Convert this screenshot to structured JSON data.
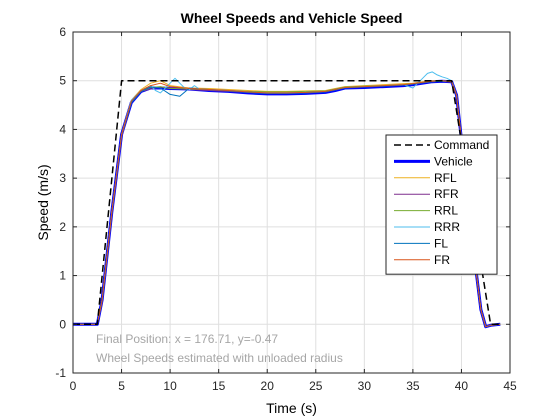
{
  "chart_data": {
    "type": "line",
    "title": "Wheel Speeds and Vehicle Speed",
    "xlabel": "Time (s)",
    "ylabel": "Speed (m/s)",
    "xlim": [
      0,
      45
    ],
    "ylim": [
      -1,
      6
    ],
    "xticks": [
      "0",
      "5",
      "10",
      "15",
      "20",
      "25",
      "30",
      "35",
      "40",
      "45"
    ],
    "yticks": [
      "-1",
      "0",
      "1",
      "2",
      "3",
      "4",
      "5",
      "6"
    ],
    "grid": true,
    "legend_position": "right",
    "annotations": [
      "Final Position:  x = 176.71, y=-0.47",
      "Wheel Speeds estimated with unloaded radius"
    ],
    "series": [
      {
        "name": "Command",
        "color": "#000000",
        "style": "dashed",
        "width": 1.5,
        "x": [
          0,
          2.5,
          5,
          39,
          43,
          44
        ],
        "y": [
          0,
          0,
          5,
          5,
          0,
          0
        ]
      },
      {
        "name": "Vehicle",
        "color": "#0000ff",
        "style": "solid",
        "width": 3,
        "x": [
          0,
          2.5,
          3,
          4,
          5,
          6,
          7,
          8,
          9,
          10,
          12,
          14,
          16,
          18,
          20,
          22,
          24,
          26,
          27,
          28,
          30,
          32,
          34,
          35,
          36,
          37,
          38,
          39,
          39.5,
          40,
          41,
          42,
          42.5,
          43,
          44
        ],
        "y": [
          0,
          0,
          0.5,
          2.3,
          3.9,
          4.55,
          4.78,
          4.85,
          4.85,
          4.84,
          4.83,
          4.8,
          4.78,
          4.75,
          4.73,
          4.73,
          4.74,
          4.76,
          4.8,
          4.85,
          4.86,
          4.88,
          4.9,
          4.92,
          4.95,
          4.98,
          4.99,
          4.98,
          4.7,
          3.8,
          1.9,
          0.3,
          -0.05,
          -0.02,
          0
        ]
      },
      {
        "name": "RFL",
        "color": "#edb120",
        "style": "solid",
        "width": 1,
        "x": [
          0,
          2.5,
          3,
          4,
          5,
          6,
          7,
          8,
          9,
          10,
          12,
          14,
          16,
          18,
          20,
          22,
          24,
          26,
          27,
          28,
          30,
          32,
          34,
          35,
          36,
          37,
          38,
          39,
          39.5,
          40,
          41,
          42,
          42.5,
          43,
          44
        ],
        "y": [
          0,
          0,
          0.5,
          2.3,
          3.9,
          4.6,
          4.82,
          4.95,
          5.0,
          4.9,
          4.85,
          4.84,
          4.82,
          4.8,
          4.78,
          4.78,
          4.79,
          4.8,
          4.84,
          4.88,
          4.9,
          4.92,
          4.94,
          4.95,
          4.98,
          5.0,
          5.0,
          4.99,
          4.7,
          3.8,
          1.9,
          0.3,
          -0.05,
          -0.02,
          0
        ]
      },
      {
        "name": "RFR",
        "color": "#7e2f8e",
        "style": "solid",
        "width": 1,
        "x": [
          0,
          2.5,
          3,
          4,
          5,
          6,
          7,
          8,
          9,
          10,
          12,
          14,
          16,
          18,
          20,
          22,
          24,
          26,
          27,
          28,
          30,
          32,
          34,
          35,
          36,
          37,
          38,
          39,
          39.5,
          40,
          41,
          42,
          42.5,
          43,
          44
        ],
        "y": [
          0,
          0,
          0.45,
          2.25,
          3.85,
          4.55,
          4.78,
          4.83,
          4.87,
          4.85,
          4.82,
          4.8,
          4.78,
          4.76,
          4.74,
          4.74,
          4.75,
          4.77,
          4.81,
          4.86,
          4.87,
          4.89,
          4.91,
          4.93,
          4.96,
          4.98,
          4.99,
          4.97,
          4.7,
          3.8,
          1.9,
          0.3,
          -0.05,
          -0.02,
          0
        ]
      },
      {
        "name": "RRL",
        "color": "#77ac30",
        "style": "solid",
        "width": 1,
        "x": [
          0,
          2.5,
          3,
          4,
          5,
          6,
          7,
          8,
          9,
          10,
          12,
          14,
          16,
          18,
          20,
          22,
          24,
          26,
          27,
          28,
          30,
          32,
          34,
          35,
          36,
          37,
          38,
          39,
          39.5,
          40,
          41,
          42,
          42.5,
          43,
          44
        ],
        "y": [
          0,
          0,
          0.5,
          2.3,
          3.9,
          4.55,
          4.78,
          4.86,
          4.88,
          4.84,
          4.83,
          4.82,
          4.8,
          4.78,
          4.77,
          4.77,
          4.78,
          4.79,
          4.83,
          4.87,
          4.89,
          4.9,
          4.92,
          4.94,
          4.97,
          4.99,
          5.0,
          4.98,
          4.7,
          3.8,
          1.9,
          0.3,
          -0.05,
          -0.02,
          0
        ]
      },
      {
        "name": "RRR",
        "color": "#4dbeee",
        "style": "solid",
        "width": 1,
        "x": [
          0,
          2.5,
          3,
          4,
          5,
          6,
          7,
          8,
          8.5,
          9,
          9.5,
          10,
          10.5,
          11,
          11.5,
          12,
          12.5,
          13,
          14,
          16,
          18,
          20,
          22,
          24,
          26,
          27,
          28,
          30,
          32,
          34,
          35,
          35.5,
          36,
          36.5,
          37,
          37.5,
          38,
          38.5,
          39,
          39.5,
          40,
          41,
          42,
          42.5,
          43,
          44
        ],
        "y": [
          0,
          0,
          0.5,
          2.3,
          3.9,
          4.6,
          4.8,
          4.9,
          4.8,
          4.75,
          4.85,
          4.95,
          5.05,
          4.95,
          4.85,
          4.82,
          4.9,
          4.83,
          4.82,
          4.8,
          4.77,
          4.75,
          4.75,
          4.76,
          4.78,
          4.82,
          4.86,
          4.88,
          4.9,
          4.92,
          4.85,
          4.95,
          5.05,
          5.15,
          5.18,
          5.12,
          5.08,
          5.05,
          5.0,
          4.7,
          3.8,
          1.9,
          0.3,
          -0.05,
          -0.02,
          0
        ]
      },
      {
        "name": "FL",
        "color": "#0072bd",
        "style": "solid",
        "width": 1,
        "x": [
          0,
          2.5,
          3,
          4,
          5,
          6,
          7,
          8,
          9,
          10,
          11,
          12,
          13,
          14,
          16,
          18,
          20,
          22,
          24,
          26,
          27,
          28,
          30,
          32,
          34,
          35,
          36,
          37,
          38,
          39,
          39.5,
          40,
          41,
          42,
          42.5,
          43,
          44
        ],
        "y": [
          0,
          0,
          0.5,
          2.3,
          3.9,
          4.55,
          4.78,
          4.87,
          4.85,
          4.72,
          4.68,
          4.85,
          4.83,
          4.82,
          4.79,
          4.76,
          4.74,
          4.74,
          4.75,
          4.77,
          4.81,
          4.85,
          4.87,
          4.89,
          4.91,
          4.93,
          4.96,
          4.98,
          4.99,
          4.98,
          4.7,
          3.8,
          1.9,
          0.3,
          -0.05,
          -0.02,
          0
        ]
      },
      {
        "name": "FR",
        "color": "#d95319",
        "style": "solid",
        "width": 1,
        "x": [
          0,
          2.5,
          3,
          4,
          5,
          6,
          7,
          8,
          9,
          10,
          12,
          14,
          16,
          18,
          20,
          22,
          24,
          26,
          27,
          28,
          30,
          32,
          34,
          35,
          36,
          37,
          38,
          39,
          39.5,
          40,
          41,
          42,
          42.5,
          43,
          44
        ],
        "y": [
          0,
          0,
          0.5,
          2.3,
          3.9,
          4.58,
          4.8,
          4.9,
          4.95,
          4.88,
          4.84,
          4.82,
          4.8,
          4.77,
          4.75,
          4.75,
          4.76,
          4.78,
          4.82,
          4.86,
          4.88,
          4.9,
          4.92,
          4.94,
          4.97,
          4.99,
          5.0,
          4.98,
          4.7,
          3.8,
          1.9,
          0.3,
          -0.05,
          -0.02,
          0
        ]
      }
    ]
  }
}
